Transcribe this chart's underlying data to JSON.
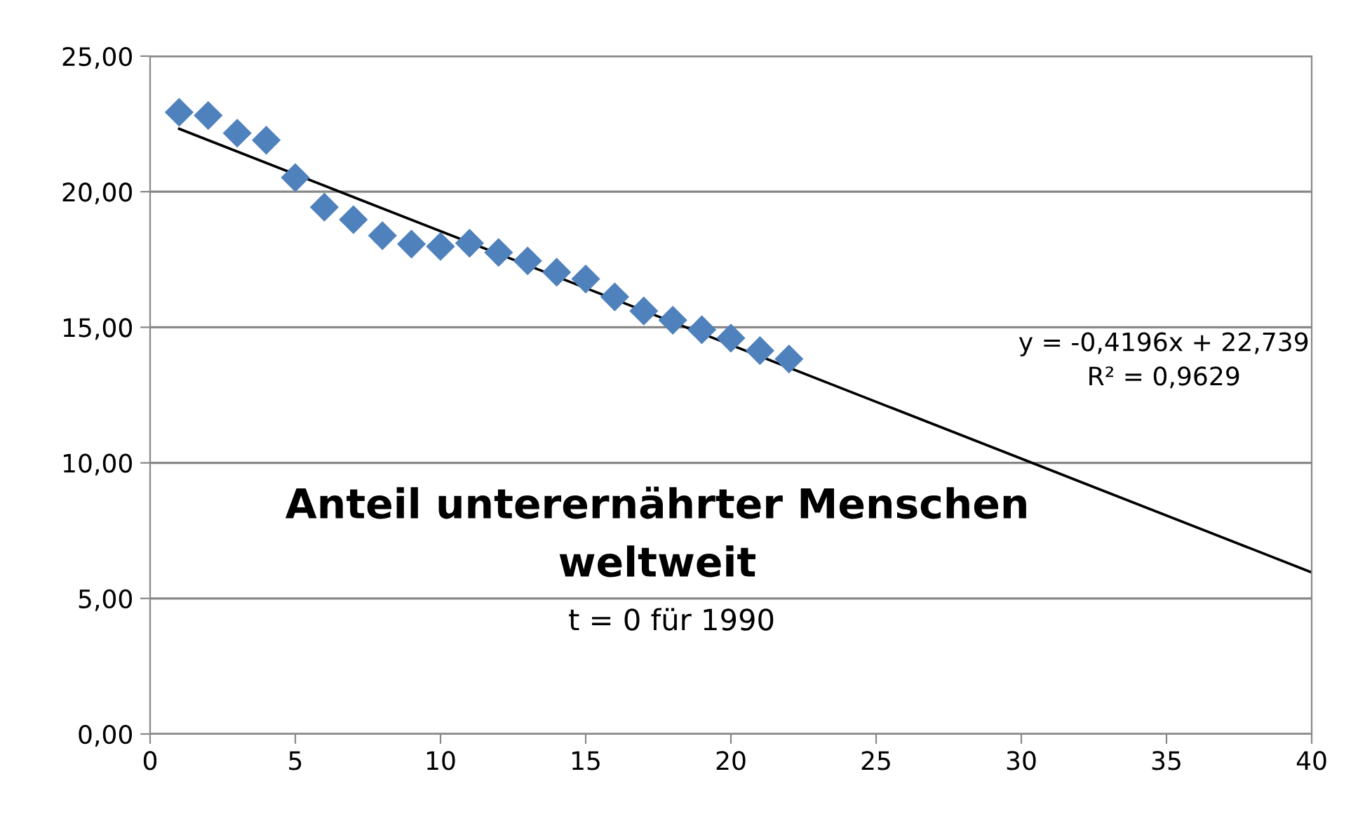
{
  "chart_data": {
    "type": "scatter",
    "title": "Anteil unterernährter Menschen weltweit",
    "subtitle": "t = 0 für 1990",
    "annotations": [
      "y = -0,4196x + 22,739",
      "R² = 0,9629"
    ],
    "marker": "diamond",
    "grid": "y",
    "legend": false,
    "xlim": [
      0,
      40
    ],
    "xticks": [
      0,
      5,
      10,
      15,
      20,
      25,
      30,
      35,
      40
    ],
    "ylim": [
      0,
      25
    ],
    "yticks": [
      {
        "value": 0,
        "label": "0,00"
      },
      {
        "value": 5,
        "label": "5,00"
      },
      {
        "value": 10,
        "label": "10,00"
      },
      {
        "value": 15,
        "label": "15,00"
      },
      {
        "value": 20,
        "label": "20,00"
      },
      {
        "value": 25,
        "label": "25,00"
      }
    ],
    "series": [
      {
        "color": "#4f81bd",
        "x": [
          1,
          2,
          3,
          4,
          5,
          6,
          7,
          8,
          9,
          10,
          11,
          12,
          13,
          14,
          15,
          16,
          17,
          18,
          19,
          20,
          21,
          22
        ],
        "values": [
          22.93,
          22.81,
          22.16,
          21.9,
          20.52,
          19.43,
          18.97,
          18.38,
          18.07,
          17.98,
          18.1,
          17.76,
          17.45,
          17.03,
          16.78,
          16.12,
          15.6,
          15.26,
          14.91,
          14.6,
          14.14,
          13.83
        ]
      },
      {
        "type": "line",
        "color": "#000000",
        "marker": "none",
        "line_style": "solid",
        "x": [
          1,
          40
        ],
        "values": [
          22.32,
          5.96
        ]
      }
    ]
  }
}
